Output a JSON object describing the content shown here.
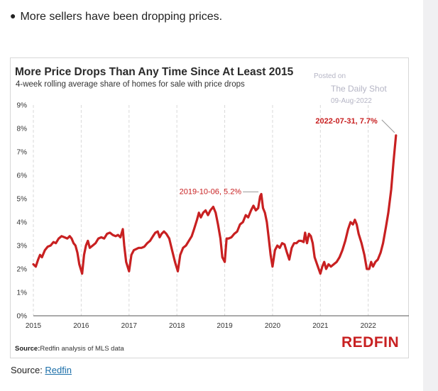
{
  "intro": {
    "bullet": "More sellers have been dropping prices."
  },
  "watermark": {
    "line1": "Posted on",
    "line2": "The Daily Shot",
    "line3": "09-Aug-2022"
  },
  "footer": {
    "source_label": "Source:",
    "source_text": "Redfin analysis of MLS data",
    "logo": "REDFIN"
  },
  "page_source": {
    "label": "Source: ",
    "link": "Redfin"
  },
  "colors": {
    "line": "#c82021",
    "grid": "#d9d9d9"
  },
  "chart_data": {
    "type": "line",
    "title": "More Price Drops Than Any Time Since At Least 2015",
    "subtitle": "4-week rolling average share of homes for sale with price drops",
    "xlabel": "",
    "ylabel": "",
    "xlim": [
      2015,
      2022.85
    ],
    "ylim": [
      0,
      9
    ],
    "x_ticks": [
      "2015",
      "2016",
      "2017",
      "2018",
      "2019",
      "2020",
      "2021",
      "2022"
    ],
    "y_ticks": [
      "0%",
      "1%",
      "2%",
      "3%",
      "4%",
      "5%",
      "6%",
      "7%",
      "8%",
      "9%"
    ],
    "grid": "vertical dashed",
    "series": [
      {
        "values": [
          [
            2015.0,
            2.2
          ],
          [
            2015.05,
            2.1
          ],
          [
            2015.1,
            2.4
          ],
          [
            2015.14,
            2.6
          ],
          [
            2015.18,
            2.5
          ],
          [
            2015.24,
            2.8
          ],
          [
            2015.3,
            2.95
          ],
          [
            2015.36,
            3.0
          ],
          [
            2015.42,
            3.15
          ],
          [
            2015.47,
            3.1
          ],
          [
            2015.53,
            3.3
          ],
          [
            2015.59,
            3.4
          ],
          [
            2015.65,
            3.35
          ],
          [
            2015.71,
            3.3
          ],
          [
            2015.76,
            3.4
          ],
          [
            2015.8,
            3.3
          ],
          [
            2015.84,
            3.1
          ],
          [
            2015.88,
            3.0
          ],
          [
            2015.92,
            2.7
          ],
          [
            2015.96,
            2.2
          ],
          [
            2016.02,
            1.8
          ],
          [
            2016.06,
            2.6
          ],
          [
            2016.1,
            3.0
          ],
          [
            2016.14,
            3.2
          ],
          [
            2016.18,
            2.9
          ],
          [
            2016.24,
            3.0
          ],
          [
            2016.3,
            3.1
          ],
          [
            2016.36,
            3.3
          ],
          [
            2016.42,
            3.35
          ],
          [
            2016.48,
            3.3
          ],
          [
            2016.54,
            3.5
          ],
          [
            2016.6,
            3.55
          ],
          [
            2016.66,
            3.45
          ],
          [
            2016.72,
            3.4
          ],
          [
            2016.77,
            3.45
          ],
          [
            2016.82,
            3.35
          ],
          [
            2016.87,
            3.7
          ],
          [
            2016.9,
            3.0
          ],
          [
            2016.94,
            2.3
          ],
          [
            2017.0,
            1.9
          ],
          [
            2017.05,
            2.6
          ],
          [
            2017.1,
            2.8
          ],
          [
            2017.15,
            2.85
          ],
          [
            2017.2,
            2.9
          ],
          [
            2017.26,
            2.9
          ],
          [
            2017.32,
            2.95
          ],
          [
            2017.38,
            3.1
          ],
          [
            2017.44,
            3.2
          ],
          [
            2017.5,
            3.4
          ],
          [
            2017.55,
            3.55
          ],
          [
            2017.6,
            3.6
          ],
          [
            2017.64,
            3.35
          ],
          [
            2017.68,
            3.5
          ],
          [
            2017.73,
            3.6
          ],
          [
            2017.78,
            3.5
          ],
          [
            2017.84,
            3.3
          ],
          [
            2017.9,
            2.8
          ],
          [
            2017.96,
            2.3
          ],
          [
            2018.02,
            1.9
          ],
          [
            2018.07,
            2.6
          ],
          [
            2018.13,
            2.9
          ],
          [
            2018.19,
            3.0
          ],
          [
            2018.25,
            3.2
          ],
          [
            2018.31,
            3.4
          ],
          [
            2018.36,
            3.7
          ],
          [
            2018.42,
            4.1
          ],
          [
            2018.46,
            4.4
          ],
          [
            2018.5,
            4.2
          ],
          [
            2018.55,
            4.4
          ],
          [
            2018.6,
            4.5
          ],
          [
            2018.65,
            4.3
          ],
          [
            2018.7,
            4.5
          ],
          [
            2018.76,
            4.65
          ],
          [
            2018.81,
            4.4
          ],
          [
            2018.86,
            3.9
          ],
          [
            2018.91,
            3.3
          ],
          [
            2018.95,
            2.5
          ],
          [
            2019.0,
            2.3
          ],
          [
            2019.04,
            3.3
          ],
          [
            2019.08,
            3.3
          ],
          [
            2019.14,
            3.35
          ],
          [
            2019.2,
            3.5
          ],
          [
            2019.26,
            3.6
          ],
          [
            2019.32,
            3.9
          ],
          [
            2019.38,
            4.0
          ],
          [
            2019.44,
            4.3
          ],
          [
            2019.49,
            4.2
          ],
          [
            2019.55,
            4.5
          ],
          [
            2019.6,
            4.7
          ],
          [
            2019.65,
            4.5
          ],
          [
            2019.7,
            4.6
          ],
          [
            2019.74,
            5.1
          ],
          [
            2019.765,
            5.2
          ],
          [
            2019.8,
            4.6
          ],
          [
            2019.84,
            4.4
          ],
          [
            2019.88,
            4.0
          ],
          [
            2019.92,
            3.3
          ],
          [
            2019.96,
            2.6
          ],
          [
            2020.0,
            2.1
          ],
          [
            2020.05,
            2.8
          ],
          [
            2020.1,
            3.0
          ],
          [
            2020.15,
            2.9
          ],
          [
            2020.2,
            3.1
          ],
          [
            2020.25,
            3.05
          ],
          [
            2020.3,
            2.7
          ],
          [
            2020.35,
            2.4
          ],
          [
            2020.4,
            2.9
          ],
          [
            2020.45,
            3.1
          ],
          [
            2020.5,
            3.1
          ],
          [
            2020.55,
            3.2
          ],
          [
            2020.6,
            3.2
          ],
          [
            2020.65,
            3.15
          ],
          [
            2020.68,
            3.55
          ],
          [
            2020.72,
            3.1
          ],
          [
            2020.76,
            3.5
          ],
          [
            2020.8,
            3.4
          ],
          [
            2020.84,
            3.1
          ],
          [
            2020.88,
            2.5
          ],
          [
            2020.93,
            2.2
          ],
          [
            2021.0,
            1.8
          ],
          [
            2021.04,
            2.1
          ],
          [
            2021.08,
            2.3
          ],
          [
            2021.12,
            2.0
          ],
          [
            2021.17,
            2.2
          ],
          [
            2021.22,
            2.1
          ],
          [
            2021.28,
            2.2
          ],
          [
            2021.34,
            2.3
          ],
          [
            2021.4,
            2.5
          ],
          [
            2021.46,
            2.8
          ],
          [
            2021.52,
            3.2
          ],
          [
            2021.58,
            3.7
          ],
          [
            2021.63,
            4.0
          ],
          [
            2021.68,
            3.9
          ],
          [
            2021.72,
            4.1
          ],
          [
            2021.76,
            3.9
          ],
          [
            2021.8,
            3.5
          ],
          [
            2021.86,
            3.1
          ],
          [
            2021.92,
            2.6
          ],
          [
            2021.97,
            2.0
          ],
          [
            2022.02,
            2.0
          ],
          [
            2022.06,
            2.3
          ],
          [
            2022.1,
            2.1
          ],
          [
            2022.15,
            2.3
          ],
          [
            2022.2,
            2.4
          ],
          [
            2022.26,
            2.7
          ],
          [
            2022.31,
            3.1
          ],
          [
            2022.37,
            3.8
          ],
          [
            2022.42,
            4.4
          ],
          [
            2022.48,
            5.4
          ],
          [
            2022.53,
            6.6
          ],
          [
            2022.58,
            7.7
          ]
        ]
      }
    ],
    "annotations": [
      {
        "text": "2019-10-06, 5.2%",
        "x": 2019.765,
        "y": 5.2
      },
      {
        "text": "2022-07-31, 7.7%",
        "x": 2022.58,
        "y": 7.7
      }
    ]
  }
}
